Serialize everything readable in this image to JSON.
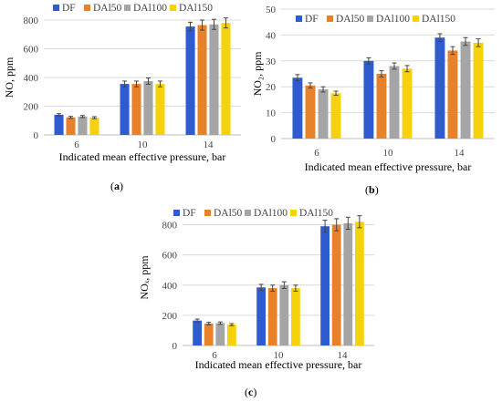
{
  "colors": {
    "DF": "#2e5cd0",
    "DAl50": "#e8822a",
    "DAl100": "#a5a5a5",
    "DAl150": "#f5d20c",
    "error_bar": "#444444",
    "grid": "#d9d9d9",
    "axis": "#bfbfbf"
  },
  "chart_data": [
    {
      "id": "a",
      "type": "bar",
      "letter": "a",
      "categories": [
        "6",
        "10",
        "14"
      ],
      "series": [
        {
          "name": "DF",
          "values": [
            140,
            355,
            755
          ],
          "errors": [
            8,
            20,
            30
          ]
        },
        {
          "name": "DAl50",
          "values": [
            122,
            355,
            765
          ],
          "errors": [
            7,
            20,
            35
          ]
        },
        {
          "name": "DAl100",
          "values": [
            128,
            375,
            770
          ],
          "errors": [
            7,
            22,
            35
          ]
        },
        {
          "name": "DAl150",
          "values": [
            120,
            355,
            780
          ],
          "errors": [
            7,
            20,
            35
          ]
        }
      ],
      "xlabel": "Indicated mean effective pressure, bar",
      "ylabel": "NO, ppm",
      "ylim": [
        0,
        800
      ],
      "yticks": [
        "0",
        "200",
        "400",
        "600",
        "800"
      ],
      "grid": true,
      "legend": "top"
    },
    {
      "id": "b",
      "type": "bar",
      "letter": "b",
      "categories": [
        "6",
        "10",
        "14"
      ],
      "series": [
        {
          "name": "DF",
          "values": [
            23.5,
            30,
            39
          ],
          "errors": [
            1.2,
            1.2,
            1.5
          ]
        },
        {
          "name": "DAl50",
          "values": [
            20.5,
            25,
            34
          ],
          "errors": [
            1.0,
            1.2,
            1.5
          ]
        },
        {
          "name": "DAl100",
          "values": [
            19,
            28,
            37.5
          ],
          "errors": [
            1.0,
            1.2,
            1.5
          ]
        },
        {
          "name": "DAl150",
          "values": [
            17.5,
            27,
            37
          ],
          "errors": [
            0.8,
            1.2,
            1.5
          ]
        }
      ],
      "xlabel": "Indicated mean effective pressure, bar",
      "ylabel": "NO₂, ppm",
      "ylim": [
        0,
        50
      ],
      "yticks": [
        "0",
        "10",
        "20",
        "30",
        "40",
        "50"
      ],
      "grid": true,
      "legend": "top"
    },
    {
      "id": "c",
      "type": "bar",
      "letter": "c",
      "categories": [
        "6",
        "10",
        "14"
      ],
      "series": [
        {
          "name": "DF",
          "values": [
            165,
            385,
            790
          ],
          "errors": [
            10,
            20,
            40
          ]
        },
        {
          "name": "DAl50",
          "values": [
            145,
            380,
            800
          ],
          "errors": [
            8,
            20,
            40
          ]
        },
        {
          "name": "DAl100",
          "values": [
            148,
            400,
            810
          ],
          "errors": [
            8,
            22,
            40
          ]
        },
        {
          "name": "DAl150",
          "values": [
            138,
            380,
            820
          ],
          "errors": [
            7,
            20,
            40
          ]
        }
      ],
      "xlabel": "Indicated mean effective pressure, bar",
      "ylabel": "NOₓ, ppm",
      "ylim": [
        0,
        900
      ],
      "yticks": [
        "0",
        "200",
        "400",
        "600",
        "800"
      ],
      "grid": true,
      "legend": "top"
    }
  ]
}
